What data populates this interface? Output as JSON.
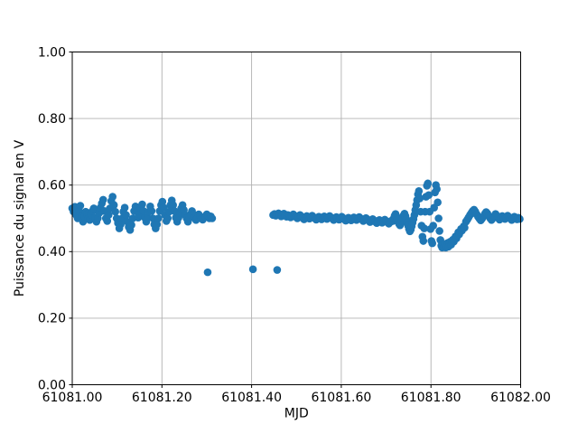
{
  "figure": {
    "background": "#ffffff"
  },
  "chart_data": {
    "type": "scatter",
    "title": "",
    "xlabel": "MJD",
    "ylabel": "Puissance du signal en V",
    "xlim": [
      61081.0,
      61082.0
    ],
    "ylim": [
      0.0,
      1.0
    ],
    "xticks": [
      61081.0,
      61081.2,
      61081.4,
      61081.6,
      61081.8,
      61082.0
    ],
    "xtick_labels": [
      "61081.00",
      "61081.20",
      "61081.40",
      "61081.60",
      "61081.80",
      "61082.00"
    ],
    "yticks": [
      0.0,
      0.2,
      0.4,
      0.6,
      0.8,
      1.0
    ],
    "ytick_labels": [
      "0.00",
      "0.20",
      "0.40",
      "0.60",
      "0.80",
      "1.00"
    ],
    "grid": true,
    "grid_color": "#b0b0b0",
    "spine_color": "#000000",
    "legend": null,
    "marker_color": "#1f77b4",
    "marker_radius_px": 4.3,
    "series": [
      {
        "name": "signal-power",
        "segments": [
          {
            "x_start": 61081.0,
            "x_step": 0.003,
            "y": [
              0.53,
              0.52,
              0.535,
              0.51,
              0.5,
              0.522,
              0.538,
              0.505,
              0.49,
              0.506,
              0.52,
              0.512,
              0.5,
              0.495,
              0.512,
              0.522,
              0.53,
              0.502,
              0.49,
              0.5,
              0.516,
              0.532,
              0.545,
              0.556,
              0.522,
              0.5,
              0.492,
              0.51,
              0.53,
              0.552,
              0.565,
              0.54,
              0.52,
              0.5,
              0.486,
              0.47,
              0.482,
              0.5,
              0.52,
              0.532,
              0.51,
              0.49,
              0.474,
              0.465,
              0.48,
              0.5,
              0.522,
              0.536,
              0.52,
              0.502,
              0.512,
              0.53,
              0.542,
              0.522,
              0.502,
              0.49,
              0.502,
              0.52,
              0.536,
              0.522,
              0.5,
              0.482,
              0.47,
              0.482,
              0.5,
              0.522,
              0.54,
              0.55,
              0.532,
              0.51,
              0.492,
              0.5,
              0.52,
              0.54,
              0.554,
              0.54,
              0.522,
              0.502,
              0.49,
              0.502,
              0.516,
              0.53,
              0.54,
              0.525,
              0.51,
              0.5,
              0.49,
              0.5,
              0.512,
              0.522,
              0.512,
              0.502,
              0.495,
              0.5,
              0.512,
              0.506,
              0.5,
              0.496,
              0.502,
              0.506,
              0.512,
              0.504,
              0.5,
              0.506,
              0.5
            ]
          },
          {
            "points": [
              [
                61081.302,
                0.338
              ],
              [
                61081.403,
                0.347
              ],
              [
                61081.457,
                0.345
              ]
            ]
          },
          {
            "x_start": 61081.448,
            "x_step": 0.003,
            "y": [
              0.51,
              0.513,
              0.508,
              0.512,
              0.515,
              0.51,
              0.506,
              0.511,
              0.514,
              0.509,
              0.505,
              0.51,
              0.507,
              0.503,
              0.508,
              0.512,
              0.508,
              0.504,
              0.5,
              0.505,
              0.51,
              0.506,
              0.501,
              0.497,
              0.502,
              0.507,
              0.503,
              0.499,
              0.504,
              0.508,
              0.504,
              0.5,
              0.496,
              0.501,
              0.505,
              0.501,
              0.497,
              0.502,
              0.506,
              0.502,
              0.498,
              0.503,
              0.507,
              0.503,
              0.499,
              0.495,
              0.5,
              0.504,
              0.5,
              0.496,
              0.501,
              0.505,
              0.501,
              0.497,
              0.493,
              0.498,
              0.502,
              0.498,
              0.494,
              0.499,
              0.503,
              0.499,
              0.495,
              0.5,
              0.504,
              0.5,
              0.496,
              0.492,
              0.497,
              0.501,
              0.497,
              0.493,
              0.489,
              0.494,
              0.498,
              0.494,
              0.49,
              0.486,
              0.491,
              0.495,
              0.491,
              0.487,
              0.492,
              0.496,
              0.492,
              0.488,
              0.484,
              0.489,
              0.493
            ]
          },
          {
            "x_start": 61081.715,
            "x_step": 0.002,
            "y": [
              0.492,
              0.5,
              0.508,
              0.513,
              0.506,
              0.497,
              0.489,
              0.483,
              0.479,
              0.485,
              0.493,
              0.501,
              0.509,
              0.514,
              0.507,
              0.498,
              0.488,
              0.478,
              0.468,
              0.461,
              0.466,
              0.476,
              0.487,
              0.498,
              0.51,
              0.525,
              0.54,
              0.555,
              0.572,
              0.582,
              0.56,
              0.52,
              0.478,
              0.445,
              0.432,
              0.47,
              0.52,
              0.565,
              0.598,
              0.605,
              0.57,
              0.52,
              0.468,
              0.432,
              0.425,
              0.478,
              0.532,
              0.578,
              0.6,
              0.588,
              0.548,
              0.5,
              0.462,
              0.435,
              0.418,
              0.412,
              0.42,
              0.414,
              0.423,
              0.412,
              0.418,
              0.426,
              0.415,
              0.422,
              0.43,
              0.421,
              0.428,
              0.436,
              0.43,
              0.438,
              0.446,
              0.44,
              0.45,
              0.458,
              0.452,
              0.46,
              0.468,
              0.463,
              0.47,
              0.476,
              0.472
            ]
          },
          {
            "x_start": 61081.878,
            "x_step": 0.003,
            "y": [
              0.49,
              0.496,
              0.503,
              0.51,
              0.516,
              0.522,
              0.526,
              0.52,
              0.512,
              0.505,
              0.499,
              0.494,
              0.499,
              0.506,
              0.513,
              0.519,
              0.514,
              0.507,
              0.5,
              0.495,
              0.5,
              0.507,
              0.513,
              0.508,
              0.501,
              0.496,
              0.501,
              0.507,
              0.503,
              0.498,
              0.503,
              0.508,
              0.504,
              0.499,
              0.495,
              0.5,
              0.505,
              0.501,
              0.497,
              0.502,
              0.498
            ]
          }
        ]
      }
    ]
  }
}
